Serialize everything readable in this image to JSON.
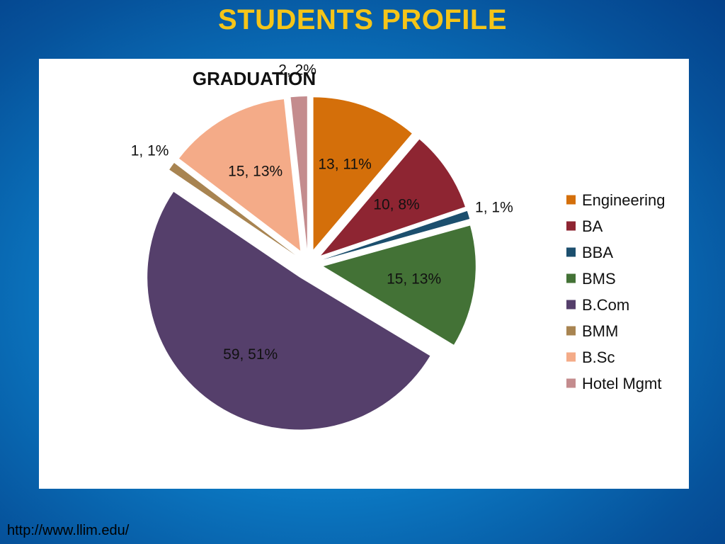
{
  "slide": {
    "title": "STUDENTS PROFILE",
    "footer_url": "http://www.llim.edu/"
  },
  "chart_data": {
    "type": "pie",
    "title": "GRADUATION",
    "exploded": true,
    "start_angle_deg": 0,
    "direction": "clockwise",
    "legend_position": "right",
    "categories": [
      "Engineering",
      "BA",
      "BBA",
      "BMS",
      "B.Com",
      "BMM",
      "B.Sc",
      "Hotel Mgmt"
    ],
    "values": [
      13,
      10,
      1,
      15,
      59,
      1,
      15,
      2
    ],
    "percents": [
      11,
      8,
      1,
      13,
      51,
      1,
      13,
      2
    ],
    "data_labels": [
      "13, 11%",
      "10, 8%",
      "1, 1%",
      "15, 13%",
      "59, 51%",
      "1, 1%",
      "15, 13%",
      "2, 2%"
    ],
    "colors": [
      "#d46f0a",
      "#8e2532",
      "#1c4f6e",
      "#437236",
      "#553f6b",
      "#a88451",
      "#f4ab88",
      "#c48c8e"
    ]
  }
}
